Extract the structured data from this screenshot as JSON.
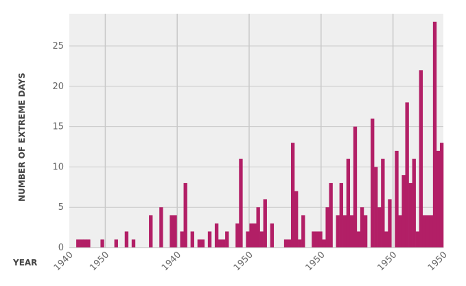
{
  "colors": {
    "plot_background": "#efefef",
    "grid": "#c9c9c9",
    "bar": "#b21f66",
    "text": "#666666"
  },
  "chart_data": {
    "type": "bar",
    "title": "",
    "ylabel": "NUMBER OF EXTREME DAYS",
    "xlabel": "YEAR",
    "ylim": [
      0,
      29
    ],
    "xlim": [
      0,
      104
    ],
    "grid": true,
    "yticks": [
      0,
      5,
      10,
      15,
      20,
      25
    ],
    "xticks": [
      {
        "pos": 0,
        "label": "1940"
      },
      {
        "pos": 10,
        "label": "1950"
      },
      {
        "pos": 30,
        "label": "1940"
      },
      {
        "pos": 50,
        "label": "1950"
      },
      {
        "pos": 70,
        "label": "1950"
      },
      {
        "pos": 90,
        "label": "1950"
      },
      {
        "pos": 104,
        "label": "1950"
      }
    ],
    "xgrid": [
      10,
      30,
      50,
      70,
      90
    ],
    "series": [
      {
        "values": [
          0,
          0,
          1,
          1,
          1,
          1,
          0,
          0,
          0,
          1,
          0,
          0,
          0,
          1,
          0,
          0,
          2,
          0,
          1,
          0,
          0,
          0,
          0,
          4,
          0,
          0,
          5,
          0,
          0,
          4,
          4,
          0,
          2,
          8,
          0,
          2,
          0,
          1,
          1,
          0,
          2,
          0,
          3,
          1,
          1,
          2,
          0,
          0,
          3,
          11,
          0,
          2,
          3,
          3,
          5,
          2,
          6,
          0,
          3,
          0,
          0,
          0,
          1,
          1,
          13,
          7,
          1,
          4,
          0,
          0,
          2,
          2,
          2,
          1,
          5,
          8,
          0,
          4,
          8,
          4,
          11,
          4,
          15,
          2,
          5,
          4,
          0,
          16,
          10,
          5,
          11,
          2,
          6,
          0,
          12,
          4,
          9,
          18,
          8,
          11,
          2,
          22,
          4,
          4,
          4,
          28,
          12,
          13
        ]
      }
    ]
  }
}
